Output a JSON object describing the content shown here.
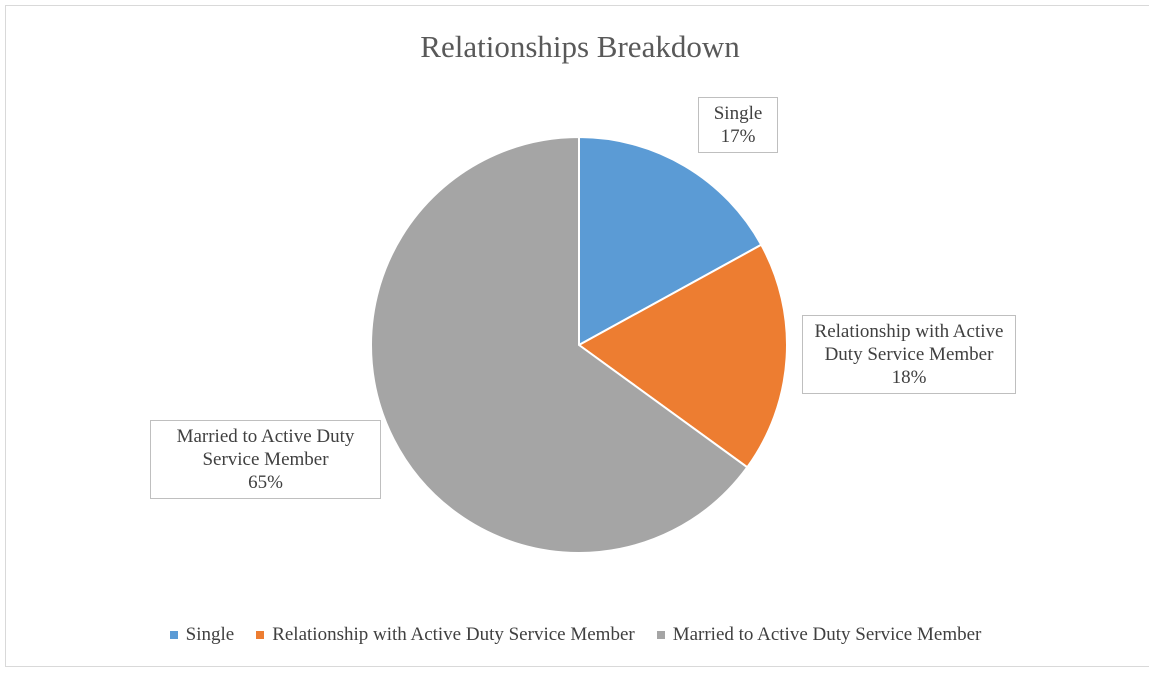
{
  "chart_data": {
    "type": "pie",
    "title": "Relationships Breakdown",
    "categories": [
      "Single",
      "Relationship with Active Duty Service Member",
      "Married to Active Duty Service Member"
    ],
    "values": [
      17,
      18,
      65
    ],
    "value_labels": [
      "17%",
      "18%",
      "65%"
    ],
    "colors": [
      "#5b9bd5",
      "#ed7d31",
      "#a5a5a5"
    ],
    "legend": "bottom"
  }
}
